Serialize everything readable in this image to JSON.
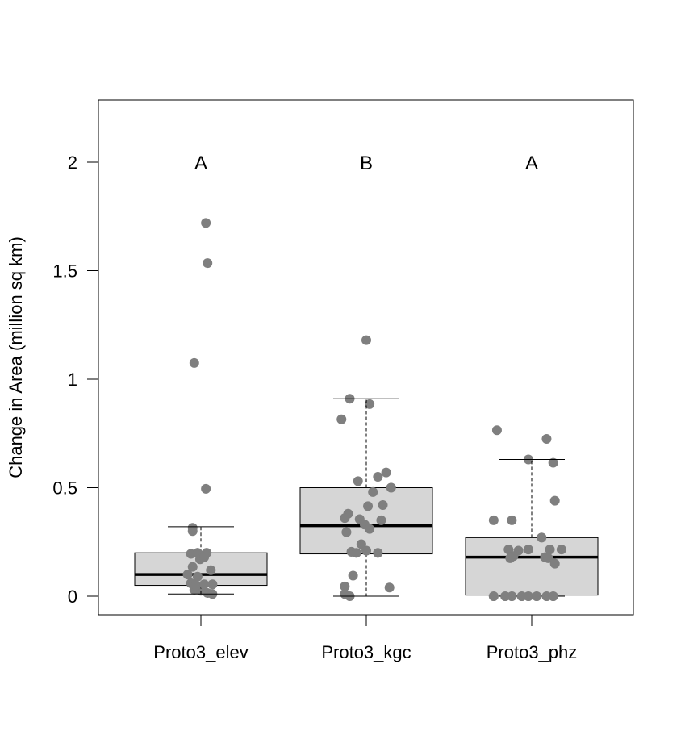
{
  "chart_data": {
    "type": "box",
    "title": "",
    "xlabel": "",
    "ylabel": "Change in Area (million sq km)",
    "ylim": [
      -0.08,
      2.28
    ],
    "yticks": [
      0,
      0.5,
      1,
      1.5,
      2
    ],
    "ytick_labels": [
      "0",
      "0.5",
      "1",
      "1.5",
      "2"
    ],
    "categories": [
      "Proto3_elev",
      "Proto3_kgc",
      "Proto3_phz"
    ],
    "group_letters": [
      "A",
      "B",
      "A"
    ],
    "letter_y": 2.0,
    "colors": {
      "box_fill": "#d3d3d3",
      "point": "#7f7f7f",
      "line": "#000000"
    },
    "boxes": [
      {
        "q1": 0.05,
        "median": 0.1,
        "q3": 0.2,
        "whisker_low": 0.01,
        "whisker_high": 0.32
      },
      {
        "q1": 0.195,
        "median": 0.325,
        "q3": 0.5,
        "whisker_low": 0.0,
        "whisker_high": 0.91
      },
      {
        "q1": 0.005,
        "median": 0.18,
        "q3": 0.27,
        "whisker_low": 0.0,
        "whisker_high": 0.63
      }
    ],
    "points": [
      [
        {
          "x": 0.03,
          "y": 1.72
        },
        {
          "x": 0.04,
          "y": 1.535
        },
        {
          "x": -0.04,
          "y": 1.075
        },
        {
          "x": 0.03,
          "y": 0.495
        },
        {
          "x": -0.05,
          "y": 0.315
        },
        {
          "x": -0.05,
          "y": 0.3
        },
        {
          "x": -0.06,
          "y": 0.195
        },
        {
          "x": -0.02,
          "y": 0.2
        },
        {
          "x": 0.035,
          "y": 0.2
        },
        {
          "x": -0.005,
          "y": 0.17
        },
        {
          "x": 0.02,
          "y": 0.18
        },
        {
          "x": -0.05,
          "y": 0.135
        },
        {
          "x": 0.06,
          "y": 0.12
        },
        {
          "x": -0.08,
          "y": 0.1
        },
        {
          "x": -0.02,
          "y": 0.09
        },
        {
          "x": -0.06,
          "y": 0.06
        },
        {
          "x": -0.03,
          "y": 0.05
        },
        {
          "x": 0.02,
          "y": 0.055
        },
        {
          "x": 0.07,
          "y": 0.055
        },
        {
          "x": -0.04,
          "y": 0.03
        },
        {
          "x": 0.0,
          "y": 0.025
        },
        {
          "x": 0.04,
          "y": 0.015
        },
        {
          "x": 0.07,
          "y": 0.01
        }
      ],
      [
        {
          "x": 0.0,
          "y": 1.18
        },
        {
          "x": -0.1,
          "y": 0.91
        },
        {
          "x": 0.02,
          "y": 0.885
        },
        {
          "x": -0.15,
          "y": 0.815
        },
        {
          "x": 0.12,
          "y": 0.57
        },
        {
          "x": 0.07,
          "y": 0.55
        },
        {
          "x": -0.05,
          "y": 0.53
        },
        {
          "x": 0.15,
          "y": 0.5
        },
        {
          "x": 0.04,
          "y": 0.48
        },
        {
          "x": 0.1,
          "y": 0.42
        },
        {
          "x": 0.01,
          "y": 0.415
        },
        {
          "x": -0.11,
          "y": 0.38
        },
        {
          "x": -0.13,
          "y": 0.36
        },
        {
          "x": -0.04,
          "y": 0.355
        },
        {
          "x": 0.09,
          "y": 0.35
        },
        {
          "x": -0.01,
          "y": 0.33
        },
        {
          "x": 0.02,
          "y": 0.31
        },
        {
          "x": -0.12,
          "y": 0.295
        },
        {
          "x": -0.03,
          "y": 0.24
        },
        {
          "x": 0.0,
          "y": 0.21
        },
        {
          "x": -0.09,
          "y": 0.205
        },
        {
          "x": 0.07,
          "y": 0.2
        },
        {
          "x": -0.06,
          "y": 0.2
        },
        {
          "x": -0.08,
          "y": 0.095
        },
        {
          "x": -0.13,
          "y": 0.045
        },
        {
          "x": 0.14,
          "y": 0.04
        },
        {
          "x": -0.13,
          "y": 0.01
        },
        {
          "x": -0.1,
          "y": 0.0
        }
      ],
      [
        {
          "x": -0.21,
          "y": 0.765
        },
        {
          "x": 0.09,
          "y": 0.725
        },
        {
          "x": -0.02,
          "y": 0.63
        },
        {
          "x": 0.13,
          "y": 0.615
        },
        {
          "x": 0.14,
          "y": 0.44
        },
        {
          "x": -0.23,
          "y": 0.35
        },
        {
          "x": -0.12,
          "y": 0.35
        },
        {
          "x": 0.06,
          "y": 0.27
        },
        {
          "x": -0.14,
          "y": 0.215
        },
        {
          "x": -0.08,
          "y": 0.21
        },
        {
          "x": -0.02,
          "y": 0.215
        },
        {
          "x": 0.11,
          "y": 0.215
        },
        {
          "x": 0.18,
          "y": 0.215
        },
        {
          "x": -0.11,
          "y": 0.185
        },
        {
          "x": -0.13,
          "y": 0.175
        },
        {
          "x": 0.08,
          "y": 0.18
        },
        {
          "x": 0.1,
          "y": 0.175
        },
        {
          "x": 0.14,
          "y": 0.15
        },
        {
          "x": -0.23,
          "y": 0.0
        },
        {
          "x": -0.16,
          "y": 0.0
        },
        {
          "x": -0.12,
          "y": 0.0
        },
        {
          "x": -0.06,
          "y": 0.0
        },
        {
          "x": -0.02,
          "y": 0.0
        },
        {
          "x": 0.03,
          "y": 0.0
        },
        {
          "x": 0.09,
          "y": 0.0
        },
        {
          "x": 0.13,
          "y": 0.0
        }
      ]
    ]
  }
}
